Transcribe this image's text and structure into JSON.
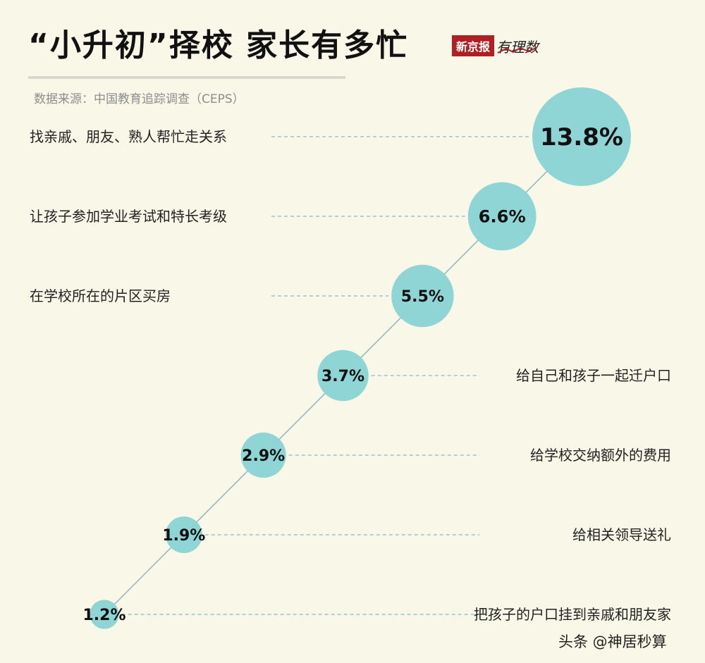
{
  "header": {
    "title": "“小升初”择校 家长有多忙",
    "source": "数据来源：中国教育追踪调查（CEPS）",
    "logo_red": "新京报",
    "logo_italic": "有理数"
  },
  "watermark": "头条 @神居秒算",
  "colors": {
    "bubble": "#8fd5d6",
    "connector": "#8fb6bd",
    "dash": "#8fb6bd",
    "text": "#222222"
  },
  "chart_data": {
    "type": "scatter",
    "title": "“小升初”择校 家长有多忙",
    "unit": "%",
    "points": [
      {
        "label": "找亲戚、朋友、熟人帮忙走关系",
        "value": 13.8,
        "value_label": "13.8%",
        "label_side": "left"
      },
      {
        "label": "让孩子参加学业考试和特长考级",
        "value": 6.6,
        "value_label": "6.6%",
        "label_side": "left"
      },
      {
        "label": "在学校所在的片区买房",
        "value": 5.5,
        "value_label": "5.5%",
        "label_side": "left"
      },
      {
        "label": "给自己和孩子一起迁户口",
        "value": 3.7,
        "value_label": "3.7%",
        "label_side": "right"
      },
      {
        "label": "给学校交纳额外的费用",
        "value": 2.9,
        "value_label": "2.9%",
        "label_side": "right"
      },
      {
        "label": "给相关领导送礼",
        "value": 1.9,
        "value_label": "1.9%",
        "label_side": "right"
      },
      {
        "label": "把孩子的户口挂到亲戚和朋友家",
        "value": 1.2,
        "value_label": "1.2%",
        "label_side": "right"
      }
    ]
  }
}
